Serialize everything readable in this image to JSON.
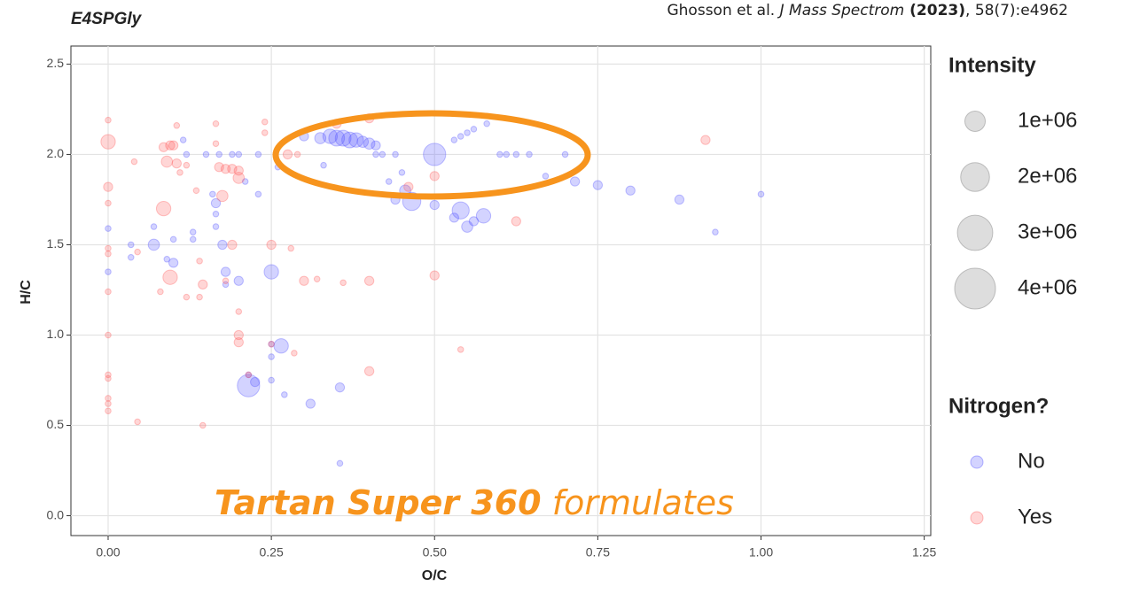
{
  "chart_data": {
    "type": "scatter",
    "title": "E4SPGly",
    "citation": [
      "Ghosson et al. ",
      "J Mass Spectrom",
      " (2023)",
      ", 58(7):e4962"
    ],
    "annotation": [
      "Tartan Super 360",
      " formulates"
    ],
    "x_label": "O/C",
    "y_label": "H/C",
    "xlim": [
      -0.057,
      1.26
    ],
    "ylim": [
      -0.11,
      2.6
    ],
    "xticks": [
      {
        "value": 0,
        "label": "0.00"
      },
      0.25,
      {
        "value": 0.5,
        "label": "0.50"
      },
      0.75,
      {
        "value": 1,
        "label": "1.00"
      },
      1.25
    ],
    "yticks": [
      {
        "value": 0,
        "label": "0.0"
      },
      0.5,
      {
        "value": 1,
        "label": "1.0"
      },
      1.5,
      {
        "value": 2,
        "label": "2.0"
      },
      2.5
    ],
    "grid": true,
    "size_legend": {
      "title": "Intensity",
      "values": [
        {
          "value": 1000000,
          "label": "1e+06"
        },
        {
          "value": 2000000,
          "label": "2e+06"
        },
        {
          "value": 3000000,
          "label": "3e+06"
        },
        {
          "value": 4000000,
          "label": "4e+06"
        }
      ]
    },
    "color_legend_title": "Nitrogen?",
    "series": [
      {
        "name": "No",
        "color": "#5050ff",
        "x": [
          0,
          0,
          0.035,
          0.035,
          0.07,
          0.07,
          0.09,
          0.1,
          0.1,
          0.115,
          0.12,
          0.13,
          0.13,
          0.15,
          0.16,
          0.165,
          0.165,
          0.165,
          0.17,
          0.175,
          0.18,
          0.18,
          0.19,
          0.2,
          0.2,
          0.21,
          0.215,
          0.215,
          0.225,
          0.23,
          0.23,
          0.25,
          0.25,
          0.25,
          0.25,
          0.26,
          0.265,
          0.27,
          0.3,
          0.31,
          0.325,
          0.34,
          0.35,
          0.36,
          0.37,
          0.38,
          0.39,
          0.4,
          0.41,
          0.33,
          0.355,
          0.355,
          0.41,
          0.42,
          0.43,
          0.44,
          0.44,
          0.45,
          0.455,
          0.465,
          0.5,
          0.5,
          0.53,
          0.54,
          0.55,
          0.56,
          0.58,
          0.53,
          0.54,
          0.55,
          0.56,
          0.575,
          0.6,
          0.61,
          0.625,
          0.645,
          0.67,
          0.7,
          0.715,
          0.75,
          0.8,
          0.875,
          0.93,
          1.0
        ],
        "values": [
          1.59,
          1.35,
          1.5,
          1.43,
          1.5,
          1.6,
          1.42,
          1.4,
          1.53,
          2.08,
          2.0,
          1.57,
          1.53,
          2.0,
          1.78,
          1.73,
          1.67,
          1.6,
          2.0,
          1.5,
          1.35,
          1.28,
          2.0,
          2.0,
          1.3,
          1.85,
          0.72,
          0.78,
          0.74,
          1.78,
          2.0,
          1.35,
          0.88,
          0.95,
          0.75,
          1.93,
          0.94,
          0.67,
          2.1,
          0.62,
          2.09,
          2.1,
          2.09,
          2.09,
          2.08,
          2.08,
          2.07,
          2.06,
          2.05,
          1.94,
          0.71,
          0.29,
          2.0,
          2.0,
          1.85,
          2.0,
          1.75,
          1.9,
          1.8,
          1.74,
          2.0,
          1.72,
          2.08,
          2.1,
          2.12,
          2.14,
          2.17,
          1.65,
          1.69,
          1.6,
          1.63,
          1.66,
          2.0,
          2.0,
          2.0,
          2.0,
          1.88,
          2.0,
          1.85,
          1.83,
          1.8,
          1.75,
          1.57,
          1.78
        ],
        "sizes": [
          80000,
          80000,
          80000,
          80000,
          300000,
          80000,
          80000,
          200000,
          80000,
          80000,
          80000,
          80000,
          80000,
          80000,
          80000,
          200000,
          80000,
          80000,
          80000,
          200000,
          200000,
          80000,
          80000,
          80000,
          200000,
          80000,
          1200000,
          80000,
          200000,
          80000,
          80000,
          500000,
          80000,
          80000,
          80000,
          80000,
          500000,
          80000,
          200000,
          200000,
          300000,
          500000,
          600000,
          600000,
          600000,
          500000,
          300000,
          300000,
          200000,
          80000,
          200000,
          80000,
          80000,
          80000,
          80000,
          80000,
          200000,
          80000,
          300000,
          800000,
          1200000,
          200000,
          80000,
          80000,
          80000,
          80000,
          80000,
          200000,
          700000,
          300000,
          200000,
          500000,
          80000,
          80000,
          80000,
          80000,
          80000,
          80000,
          200000,
          200000,
          200000,
          200000,
          80000,
          80000
        ]
      },
      {
        "name": "Yes",
        "color": "#ff5a5a",
        "x": [
          0,
          0,
          0,
          0,
          0,
          0,
          0,
          0,
          0,
          0,
          0,
          0,
          0,
          0.04,
          0.045,
          0.045,
          0.08,
          0.085,
          0.085,
          0.09,
          0.095,
          0.1,
          0.095,
          0.105,
          0.105,
          0.11,
          0.12,
          0.12,
          0.135,
          0.14,
          0.14,
          0.145,
          0.145,
          0.165,
          0.165,
          0.17,
          0.175,
          0.18,
          0.19,
          0.2,
          0.2,
          0.19,
          0.18,
          0.2,
          0.2,
          0.2,
          0.215,
          0.24,
          0.24,
          0.25,
          0.25,
          0.275,
          0.28,
          0.285,
          0.29,
          0.3,
          0.32,
          0.35,
          0.36,
          0.4,
          0.4,
          0.4,
          0.46,
          0.5,
          0.5,
          0.54,
          0.625,
          0.915
        ],
        "values": [
          2.19,
          2.07,
          1.82,
          1.73,
          1.48,
          1.45,
          1.24,
          1.0,
          0.78,
          0.76,
          0.65,
          0.62,
          0.58,
          1.96,
          1.46,
          0.52,
          1.24,
          1.7,
          2.04,
          1.96,
          2.05,
          2.05,
          1.32,
          1.95,
          2.16,
          1.9,
          1.94,
          1.21,
          1.8,
          1.41,
          1.21,
          1.28,
          0.5,
          2.06,
          2.17,
          1.93,
          1.77,
          1.92,
          1.92,
          1.91,
          1.87,
          1.5,
          1.3,
          1.13,
          1.0,
          0.96,
          0.78,
          2.18,
          2.12,
          1.5,
          0.95,
          2.0,
          1.48,
          0.9,
          2.0,
          1.3,
          1.31,
          2.17,
          1.29,
          2.2,
          1.3,
          0.8,
          1.82,
          1.88,
          1.33,
          0.92,
          1.63,
          2.08
        ],
        "sizes": [
          80000,
          500000,
          200000,
          80000,
          80000,
          80000,
          80000,
          80000,
          80000,
          80000,
          80000,
          80000,
          80000,
          80000,
          80000,
          80000,
          80000,
          500000,
          200000,
          300000,
          200000,
          200000,
          500000,
          200000,
          80000,
          80000,
          80000,
          80000,
          80000,
          80000,
          80000,
          200000,
          80000,
          80000,
          80000,
          200000,
          300000,
          200000,
          200000,
          200000,
          300000,
          200000,
          80000,
          80000,
          200000,
          200000,
          80000,
          80000,
          80000,
          200000,
          80000,
          200000,
          80000,
          80000,
          80000,
          200000,
          80000,
          200000,
          80000,
          200000,
          200000,
          200000,
          200000,
          200000,
          200000,
          80000,
          200000,
          200000
        ]
      }
    ]
  }
}
